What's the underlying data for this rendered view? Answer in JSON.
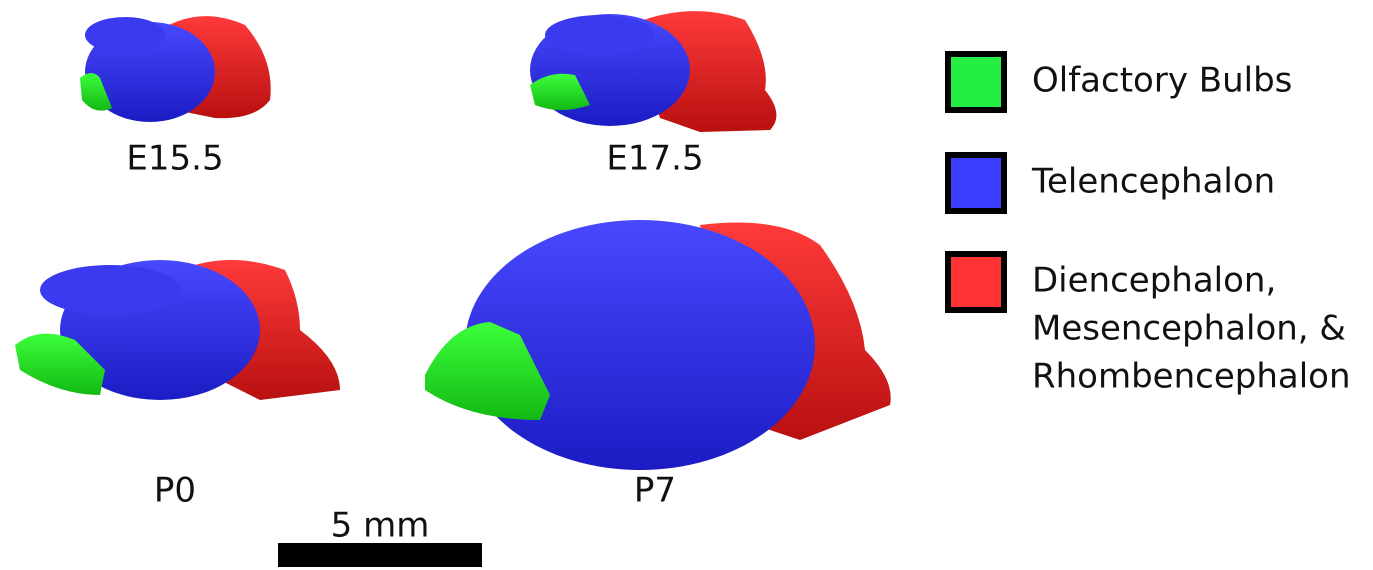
{
  "panels": [
    {
      "label": "E15.5"
    },
    {
      "label": "E17.5"
    },
    {
      "label": "P0"
    },
    {
      "label": "P7"
    }
  ],
  "scale_bar": {
    "label": "5 mm"
  },
  "legend": {
    "items": [
      {
        "lines": [
          "Olfactory Bulbs"
        ]
      },
      {
        "lines": [
          "Telencephalon"
        ]
      },
      {
        "lines": [
          "Diencephalon,",
          "Mesencephalon, &",
          "Rhombencephalon"
        ]
      }
    ]
  }
}
